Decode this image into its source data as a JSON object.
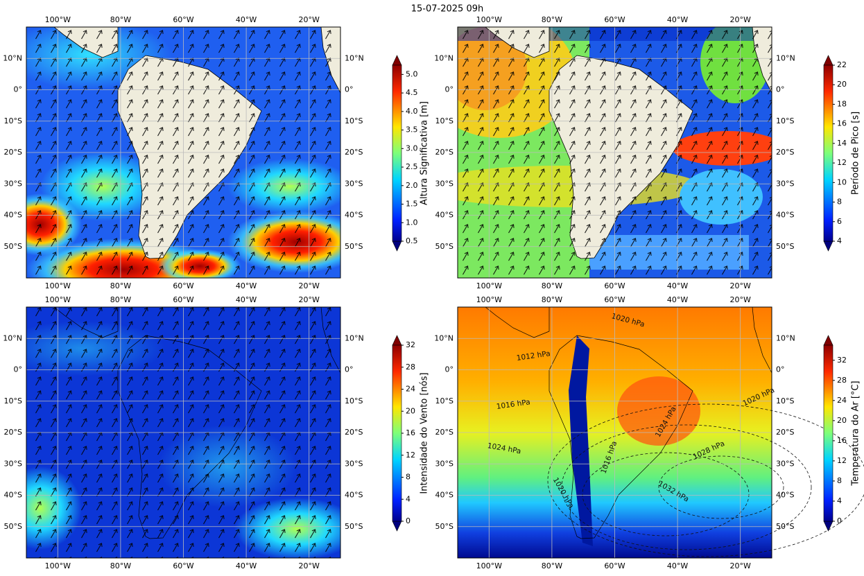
{
  "title": "15-07-2025 09h",
  "map": {
    "lon_range": [
      -110,
      -10
    ],
    "lat_range": [
      -60,
      20
    ],
    "lon_ticks": [
      {
        "value": -100,
        "label": "100°W"
      },
      {
        "value": -80,
        "label": "80°W"
      },
      {
        "value": -60,
        "label": "60°W"
      },
      {
        "value": -40,
        "label": "40°W"
      },
      {
        "value": -20,
        "label": "20°W"
      }
    ],
    "lat_ticks": [
      {
        "value": 10,
        "label": "10°N"
      },
      {
        "value": 0,
        "label": "0°"
      },
      {
        "value": -10,
        "label": "10°S"
      },
      {
        "value": -20,
        "label": "20°S"
      },
      {
        "value": -30,
        "label": "30°S"
      },
      {
        "value": -40,
        "label": "40°S"
      },
      {
        "value": -50,
        "label": "50°S"
      }
    ]
  },
  "panels": [
    {
      "colorbar": {
        "label": "Altura Significativa [m]",
        "range": [
          0.5,
          5.25
        ],
        "ticks": [
          0.5,
          {
            "value": 1,
            "label": "1.0"
          },
          1.5,
          {
            "value": 2,
            "label": "2.0"
          },
          2.5,
          {
            "value": 3,
            "label": "3.0"
          },
          3.5,
          {
            "value": 4,
            "label": "4.0"
          },
          4.5,
          {
            "value": 5,
            "label": "5.0"
          }
        ]
      }
    },
    {
      "colorbar": {
        "label": "Período de Pico [s]",
        "range": [
          4,
          22
        ],
        "ticks": [
          4,
          6,
          8,
          10,
          12,
          14,
          16,
          18,
          20,
          22
        ]
      }
    },
    {
      "colorbar": {
        "label": "Intensidade do Vento [nós]",
        "range": [
          0,
          32
        ],
        "ticks": [
          0,
          4,
          8,
          12,
          16,
          20,
          24,
          28,
          32
        ]
      }
    },
    {
      "colorbar": {
        "label": "Temperatura do Ar [°C]",
        "range": [
          0,
          35
        ],
        "ticks": [
          0,
          4,
          8,
          12,
          16,
          20,
          24,
          28,
          32
        ]
      }
    }
  ],
  "contour_labels": [
    "1020 hPa",
    "1012 hPa",
    "1016 hPa",
    "1024 hPa",
    "1020 hPa",
    "1024 hPa",
    "1028 hPa",
    "1032 hPa",
    "1016 hPa",
    "1020 hPa"
  ]
}
